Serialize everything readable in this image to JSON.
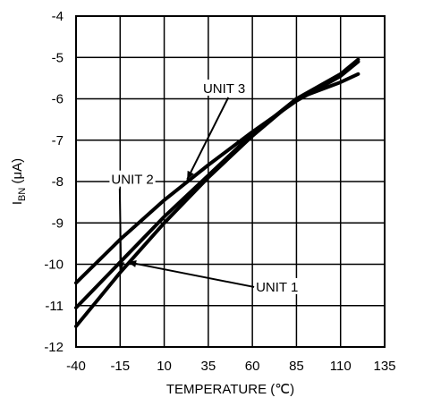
{
  "chart_data": {
    "type": "line",
    "title": "",
    "xlabel": "TEMPERATURE (℃)",
    "ylabel_main": "I",
    "ylabel_sub": "BN",
    "ylabel_unit": " (μA)",
    "xlim": [
      -40,
      135
    ],
    "ylim": [
      -12,
      -4
    ],
    "xticks": [
      "-40",
      "-15",
      "10",
      "35",
      "60",
      "85",
      "110",
      "135"
    ],
    "yticks": [
      "-4",
      "-5",
      "-6",
      "-7",
      "-8",
      "-9",
      "-10",
      "-11",
      "-12"
    ],
    "grid": true,
    "series": [
      {
        "name": "UNIT 1",
        "x": [
          -40,
          -15,
          10,
          35,
          60,
          85,
          110,
          120
        ],
        "y": [
          -11.5,
          -10.2,
          -9.0,
          -7.9,
          -6.9,
          -6.0,
          -5.4,
          -5.05
        ]
      },
      {
        "name": "UNIT 2",
        "x": [
          -40,
          -15,
          10,
          35,
          60,
          85,
          110,
          120
        ],
        "y": [
          -11.05,
          -9.95,
          -8.85,
          -7.85,
          -6.85,
          -6.0,
          -5.6,
          -5.4
        ]
      },
      {
        "name": "UNIT 3",
        "x": [
          -40,
          -15,
          10,
          35,
          60,
          85,
          110,
          120
        ],
        "y": [
          -10.45,
          -9.4,
          -8.45,
          -7.6,
          -6.8,
          -6.05,
          -5.45,
          -5.1
        ]
      }
    ],
    "annotations": [
      {
        "text": "UNIT 3",
        "x": 32,
        "y": -5.75,
        "ax": 23,
        "ay": -7.95
      },
      {
        "text": "UNIT 2",
        "x": -20,
        "y": -7.95,
        "ax": -14.5,
        "ay": -10.15
      },
      {
        "text": "UNIT 1",
        "x": 62,
        "y": -10.55,
        "ax": -10.5,
        "ay": -9.95
      }
    ]
  }
}
